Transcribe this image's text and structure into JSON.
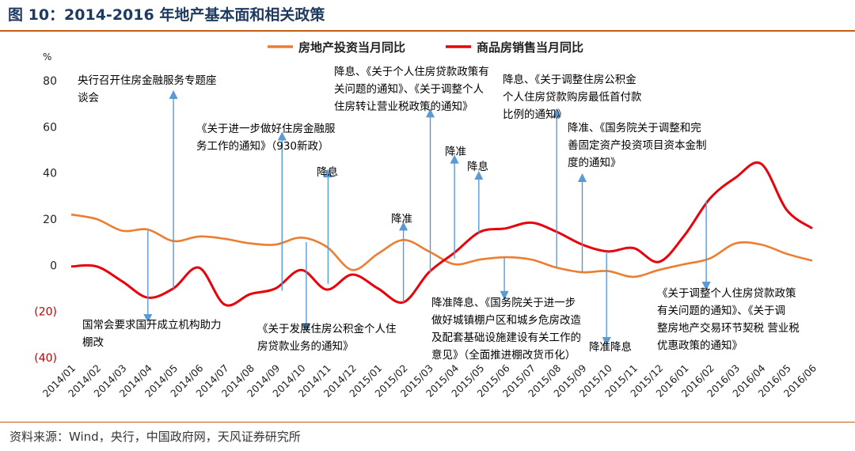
{
  "figure": {
    "title": "图 10：2014-2016 年地产基本面和相关政策",
    "source": "资料来源：Wind，央行，中国政府网，天风证券研究所"
  },
  "chart_data": {
    "type": "line",
    "unit_label": "%",
    "categories": [
      "2014/01",
      "2014/02",
      "2014/03",
      "2014/04",
      "2014/05",
      "2014/06",
      "2014/07",
      "2014/08",
      "2014/09",
      "2014/10",
      "2014/11",
      "2014/12",
      "2015/01",
      "2015/02",
      "2015/03",
      "2015/04",
      "2015/05",
      "2015/06",
      "2015/07",
      "2015/08",
      "2015/09",
      "2015/10",
      "2015/11",
      "2015/12",
      "2016/01",
      "2016/02",
      "2016/03",
      "2016/04",
      "2016/05",
      "2016/06"
    ],
    "ylim": [
      -40,
      80
    ],
    "yticks": [
      {
        "value": 80,
        "label": "80"
      },
      {
        "value": 60,
        "label": "60"
      },
      {
        "value": 40,
        "label": "40"
      },
      {
        "value": 20,
        "label": "20"
      },
      {
        "value": 0,
        "label": "0"
      },
      {
        "value": -20,
        "label": "(20)"
      },
      {
        "value": -40,
        "label": "(40)"
      }
    ],
    "legend_position": "top",
    "series": [
      {
        "name": "房地产投资当月同比",
        "color": "#ed7d31",
        "values": [
          22,
          20,
          15,
          15.5,
          10.5,
          12.5,
          11.5,
          9.5,
          9,
          12,
          8,
          -2,
          5,
          11,
          6,
          0.5,
          2.5,
          3.5,
          2.5,
          -1,
          -3,
          -2.5,
          -5,
          -2,
          0.5,
          3,
          9.5,
          9,
          5,
          2
        ]
      },
      {
        "name": "商品房销售当月同比",
        "color": "#e8000b",
        "values": [
          -0.5,
          -0.5,
          -7,
          -14,
          -10,
          -1,
          -17,
          -12.5,
          -10,
          -2,
          -10.5,
          -4,
          -10,
          -16,
          -3,
          5.5,
          14.5,
          16,
          18.5,
          14.5,
          9,
          6,
          7.5,
          1.5,
          13,
          29,
          38,
          44,
          24,
          16
        ]
      }
    ],
    "annotations": [
      {
        "id": "a1",
        "text": [
          "央行召开住房金融服务专题座",
          "谈会"
        ],
        "index": 4.0,
        "from": -10,
        "to": 74,
        "text_pos": "above",
        "color": "#000000"
      },
      {
        "id": "a2",
        "text": [
          "国常会要求国开成立机构助力",
          "棚改"
        ],
        "index": 3.0,
        "from": 15,
        "to": -23,
        "text_pos": "below",
        "color": "#000000"
      },
      {
        "id": "a3",
        "text": [
          "《关于进一步做好住房金融服",
          "务工作的通知》（930新政）"
        ],
        "index": 8.25,
        "from": -11,
        "to": 56,
        "text_pos": "above",
        "color": "#000000"
      },
      {
        "id": "a4",
        "text": [
          "《关于发展住房公积金个人住",
          "房贷款业务的通知》"
        ],
        "index": 9.2,
        "from": 10,
        "to": -27,
        "text_pos": "below",
        "color": "#000000"
      },
      {
        "id": "a5",
        "text": [
          "降息"
        ],
        "index": 10.05,
        "from": -8,
        "to": 40,
        "text_pos": "above",
        "color": "#000000"
      },
      {
        "id": "a6",
        "text": [
          "降准"
        ],
        "index": 13.0,
        "from": -16,
        "to": 17,
        "text_pos": "above",
        "color": "#000000"
      },
      {
        "id": "a7",
        "text": [
          "降息、《关于个人住房贷款政策有",
          "关问题的通知》、《关于调整个人",
          "住房转让营业税政策的通知》"
        ],
        "index": 14.05,
        "from": -3,
        "to": 66,
        "text_pos": "above",
        "color": "#000000"
      },
      {
        "id": "a8",
        "text": [
          "降准"
        ],
        "index": 15.0,
        "from": 3,
        "to": 46,
        "text_pos": "above",
        "color": "#000000"
      },
      {
        "id": "a9",
        "text": [
          "降息"
        ],
        "index": 15.95,
        "from": 14,
        "to": 39,
        "text_pos": "above",
        "color": "#000000"
      },
      {
        "id": "a10",
        "text": [
          "降准降息、《国务院关于进一步",
          "做好城镇棚户区和城乡危房改造",
          "及配套基础设施建设有关工作的",
          "意见》（全面推进棚改货币化）"
        ],
        "index": 16.95,
        "from": 3.5,
        "to": -13,
        "text_pos": "below",
        "color": "#000000"
      },
      {
        "id": "a11",
        "text": [
          "降息、《关于调整住房公积金",
          "个人住房贷款购房最低首付款",
          "比例的通知》"
        ],
        "index": 19.0,
        "from": -1,
        "to": 66,
        "text_pos": "above",
        "color": "#000000"
      },
      {
        "id": "a12",
        "text": [
          "降准、《国务院关于调整和完",
          "善固定资产投资项目资本金制",
          "度的通知》"
        ],
        "index": 20.0,
        "from": -3,
        "to": 38,
        "text_pos": "above",
        "color": "#000000"
      },
      {
        "id": "a13",
        "text": [
          "降准降息"
        ],
        "index": 20.95,
        "from": 6,
        "to": -33,
        "text_pos": "below",
        "color": "#000000"
      },
      {
        "id": "a14",
        "text": [
          "《关于调整个人住房贷款政策",
          "有关问题的通知》、《关于调",
          "整房地产交易环节契税 营业税",
          "优惠政策的通知》"
        ],
        "index": 24.85,
        "from": 28,
        "to": -9,
        "text_pos": "below",
        "color": "#000000"
      }
    ]
  }
}
